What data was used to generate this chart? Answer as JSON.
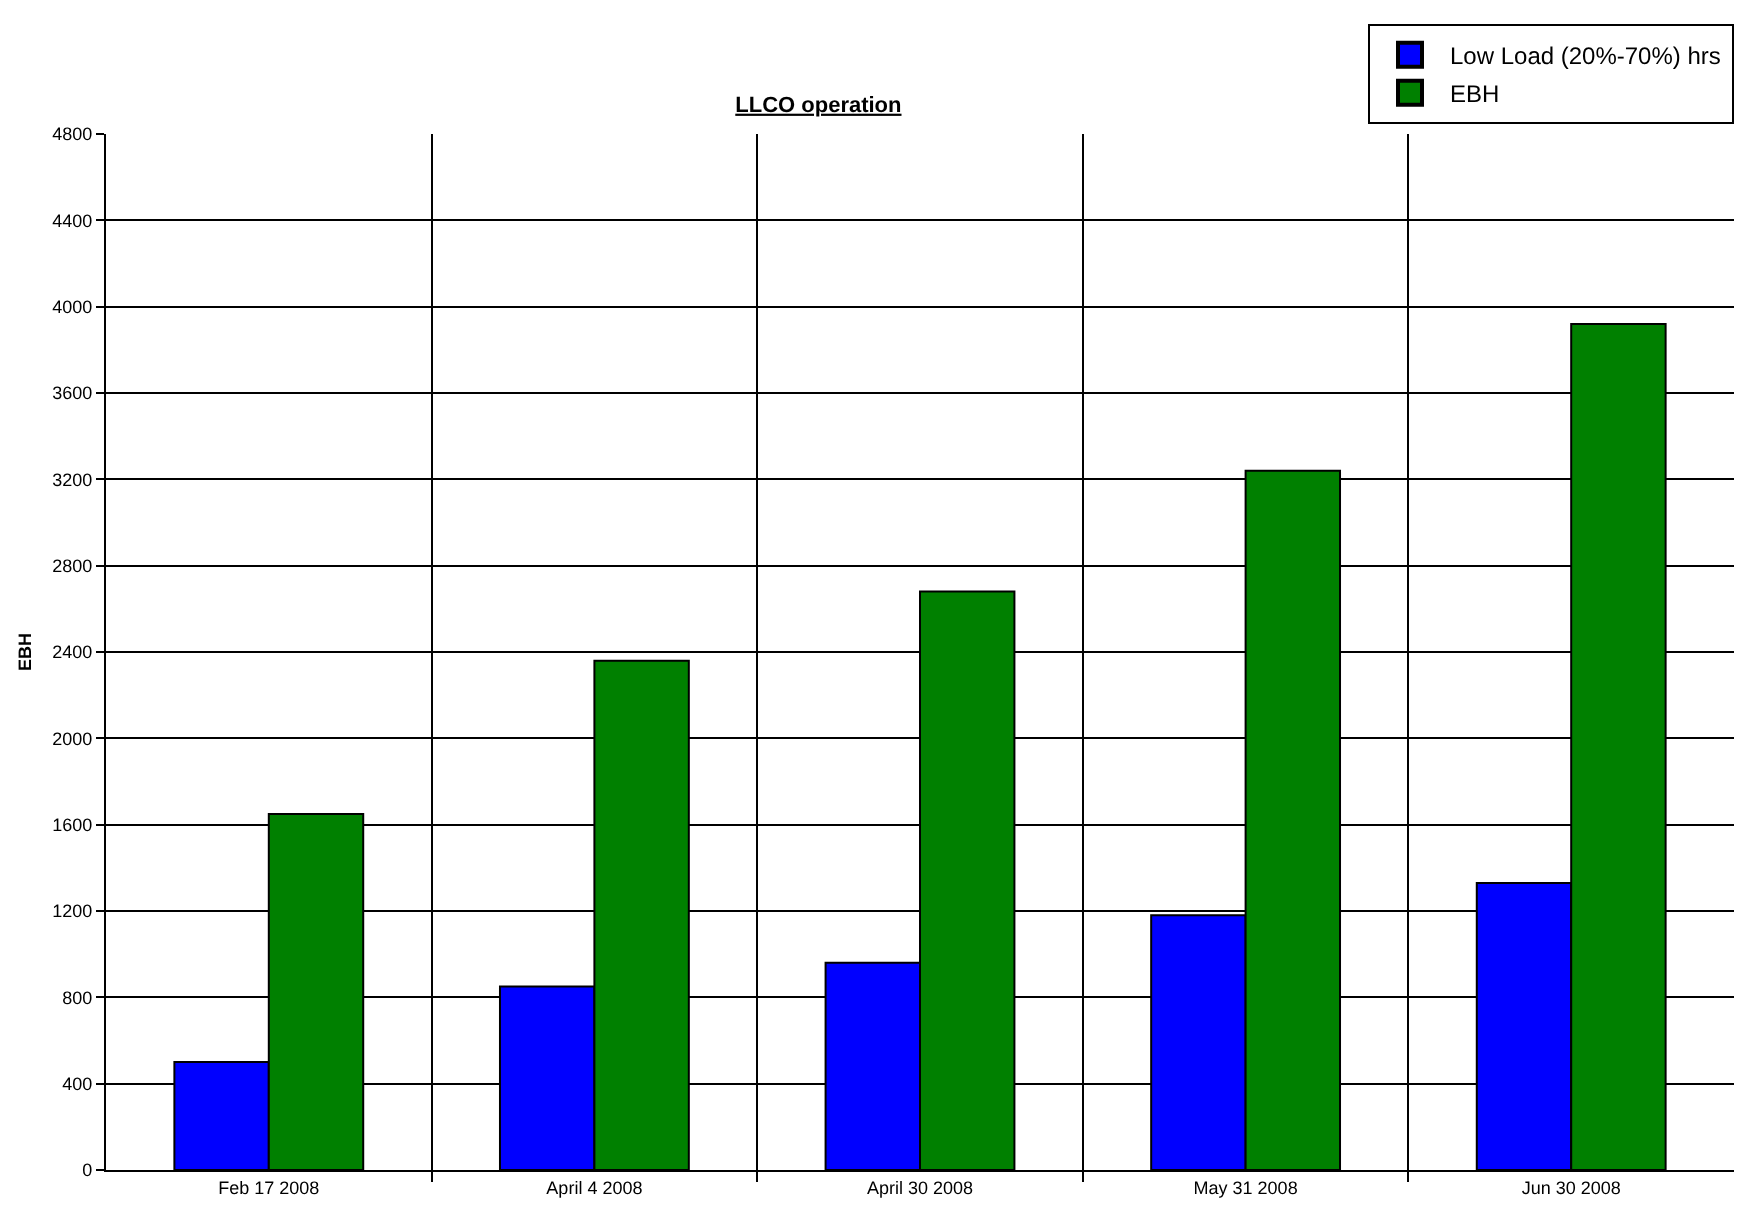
{
  "chart_data": {
    "type": "bar",
    "title": "LLCO operation",
    "ylabel": "EBH",
    "categories": [
      "Feb 17 2008",
      "April 4 2008",
      "April 30 2008",
      "May 31 2008",
      "Jun 30 2008"
    ],
    "series": [
      {
        "name": "Low Load (20%-70%) hrs",
        "color": "#0000ff",
        "values": [
          500,
          850,
          960,
          1180,
          1330
        ]
      },
      {
        "name": "EBH",
        "color": "#008000",
        "values": [
          1650,
          2360,
          2680,
          3240,
          3920
        ]
      }
    ],
    "ylim": [
      0,
      4800
    ],
    "yticks": [
      0,
      400,
      800,
      1200,
      1600,
      2000,
      2400,
      2800,
      3200,
      3600,
      4000,
      4400,
      4800
    ],
    "grid": true,
    "legend": "top right"
  }
}
